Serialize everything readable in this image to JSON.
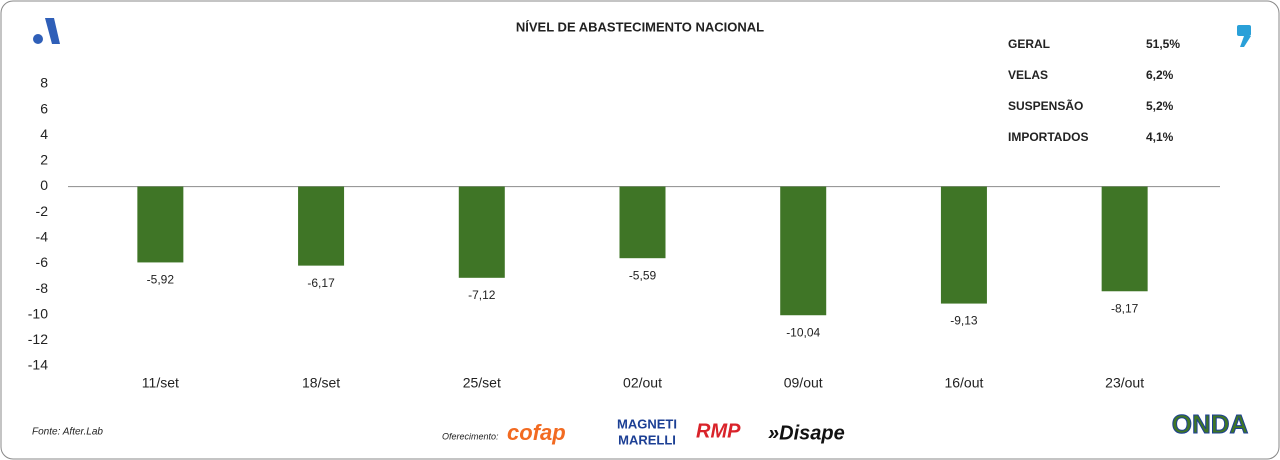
{
  "chart_data": {
    "type": "bar",
    "title": "NÍVEL DE ABASTECIMENTO NACIONAL",
    "categories": [
      "11/set",
      "18/set",
      "25/set",
      "02/out",
      "09/out",
      "16/out",
      "23/out"
    ],
    "values": [
      -5.92,
      -6.17,
      -7.12,
      -5.59,
      -10.04,
      -9.13,
      -8.17
    ],
    "value_labels": [
      "-5,92",
      "-6,17",
      "-7,12",
      "-5,59",
      "-10,04",
      "-9,13",
      "-8,17"
    ],
    "color": "#3f7526",
    "ylim": [
      -14,
      8
    ],
    "yticks": [
      8,
      6,
      4,
      2,
      0,
      -2,
      -4,
      -6,
      -8,
      -10,
      -12,
      -14
    ],
    "summary": [
      [
        "GERAL",
        "51,5%"
      ],
      [
        "VELAS",
        "6,2%"
      ],
      [
        "SUSPENSÃO",
        "5,2%"
      ],
      [
        "IMPORTADOS",
        "4,1%"
      ]
    ],
    "source": "Fonte: After.Lab",
    "sponsor_label": "Oferecimento:",
    "sponsors": [
      "cofap",
      "MAGNETI",
      "MARELLI",
      "RMP",
      "»Disape"
    ],
    "brand": "ONDA"
  }
}
